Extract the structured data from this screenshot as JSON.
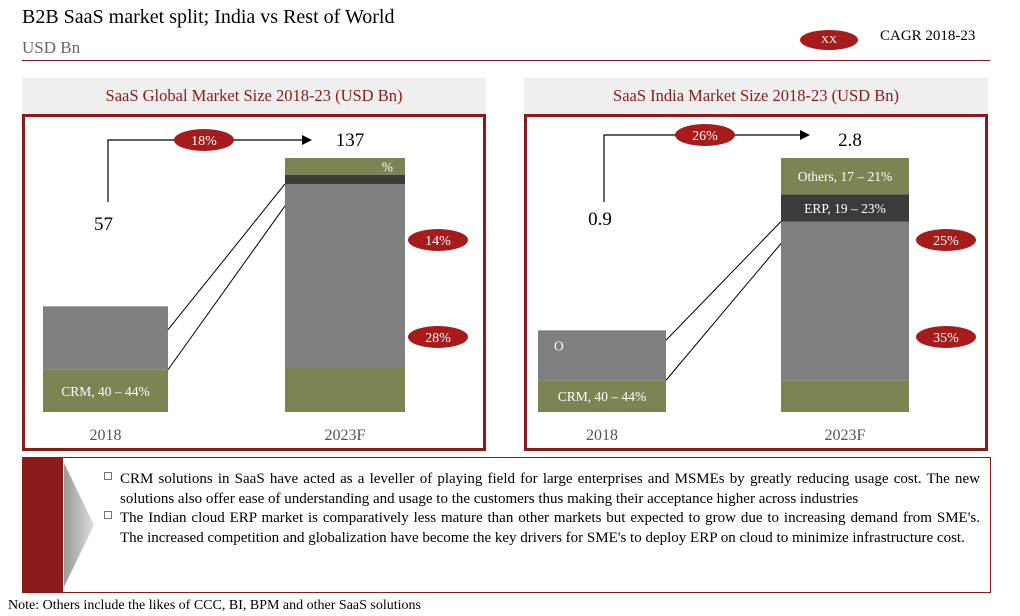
{
  "header": {
    "title": "B2B SaaS market split; India vs Rest of World",
    "subtitle": "USD Bn",
    "legend_marker": "XX",
    "legend_label": "CAGR 2018-23"
  },
  "colors": {
    "accent": "#8b1a1a",
    "cagr_pill": "#a61c1c",
    "crm": "#7b8452",
    "erp": "#3b3b3b",
    "others": "#7f7f7f",
    "others_2023": "#7b8452"
  },
  "chart_data": [
    {
      "type": "bar",
      "stacked": true,
      "title": "SaaS Global Market Size 2018-23 (USD Bn)",
      "unit": "USD Bn",
      "categories": [
        "2018",
        "2023F"
      ],
      "totals": [
        57,
        137
      ],
      "total_labels": [
        "57",
        "137"
      ],
      "growth_arrow_label": "18%",
      "segment_cagr": [
        "14%",
        "28%"
      ],
      "ylim": [
        0,
        137
      ],
      "segments": [
        {
          "key": "crm",
          "values": [
            22.8,
            24.0
          ],
          "labels": [
            "CRM, 40 – 44%",
            ""
          ],
          "color": "#7b8452"
        },
        {
          "key": "others",
          "values": [
            34.2,
            99.0
          ],
          "labels": [
            "",
            ""
          ],
          "color": "#7f7f7f"
        },
        {
          "key": "erp",
          "values": [
            0,
            5.0
          ],
          "labels": [
            "",
            ""
          ],
          "color": "#3b3b3b"
        },
        {
          "key": "top",
          "values": [
            0,
            9.0
          ],
          "labels": [
            "",
            "%"
          ],
          "color": "#7b8452"
        }
      ]
    },
    {
      "type": "bar",
      "stacked": true,
      "title": "SaaS India Market Size 2018-23 (USD Bn)",
      "unit": "USD Bn",
      "categories": [
        "2018",
        "2023F"
      ],
      "totals": [
        0.9,
        2.8
      ],
      "total_labels": [
        "0.9",
        "2.8"
      ],
      "growth_arrow_label": "26%",
      "segment_cagr": [
        "25%",
        "35%"
      ],
      "ylim": [
        0,
        2.8
      ],
      "segments": [
        {
          "key": "crm",
          "values": [
            0.35,
            0.35
          ],
          "labels": [
            "CRM, 40 – 44%",
            ""
          ],
          "color": "#7b8452"
        },
        {
          "key": "others",
          "values": [
            0.55,
            1.75
          ],
          "labels": [
            "O",
            ""
          ],
          "color": "#7f7f7f"
        },
        {
          "key": "erp",
          "values": [
            0,
            0.3
          ],
          "labels": [
            "",
            "ERP, 19 – 23%"
          ],
          "color": "#3b3b3b"
        },
        {
          "key": "top",
          "values": [
            0,
            0.4
          ],
          "labels": [
            "",
            "Others, 17 – 21%"
          ],
          "color": "#7b8452"
        }
      ]
    }
  ],
  "bullets": [
    "CRM solutions in SaaS have acted as a leveller of playing field for large enterprises and MSMEs by greatly reducing usage cost. The new solutions also offer ease of understanding and usage to the customers thus making their acceptance higher across industries",
    "The Indian cloud ERP market is comparatively less mature than other markets but expected to grow due to increasing demand from SME's. The increased competition and globalization have become the key drivers for SME's to deploy ERP on cloud to minimize infrastructure cost."
  ],
  "note": "Note: Others include the likes of CCC, BI, BPM and other SaaS solutions"
}
